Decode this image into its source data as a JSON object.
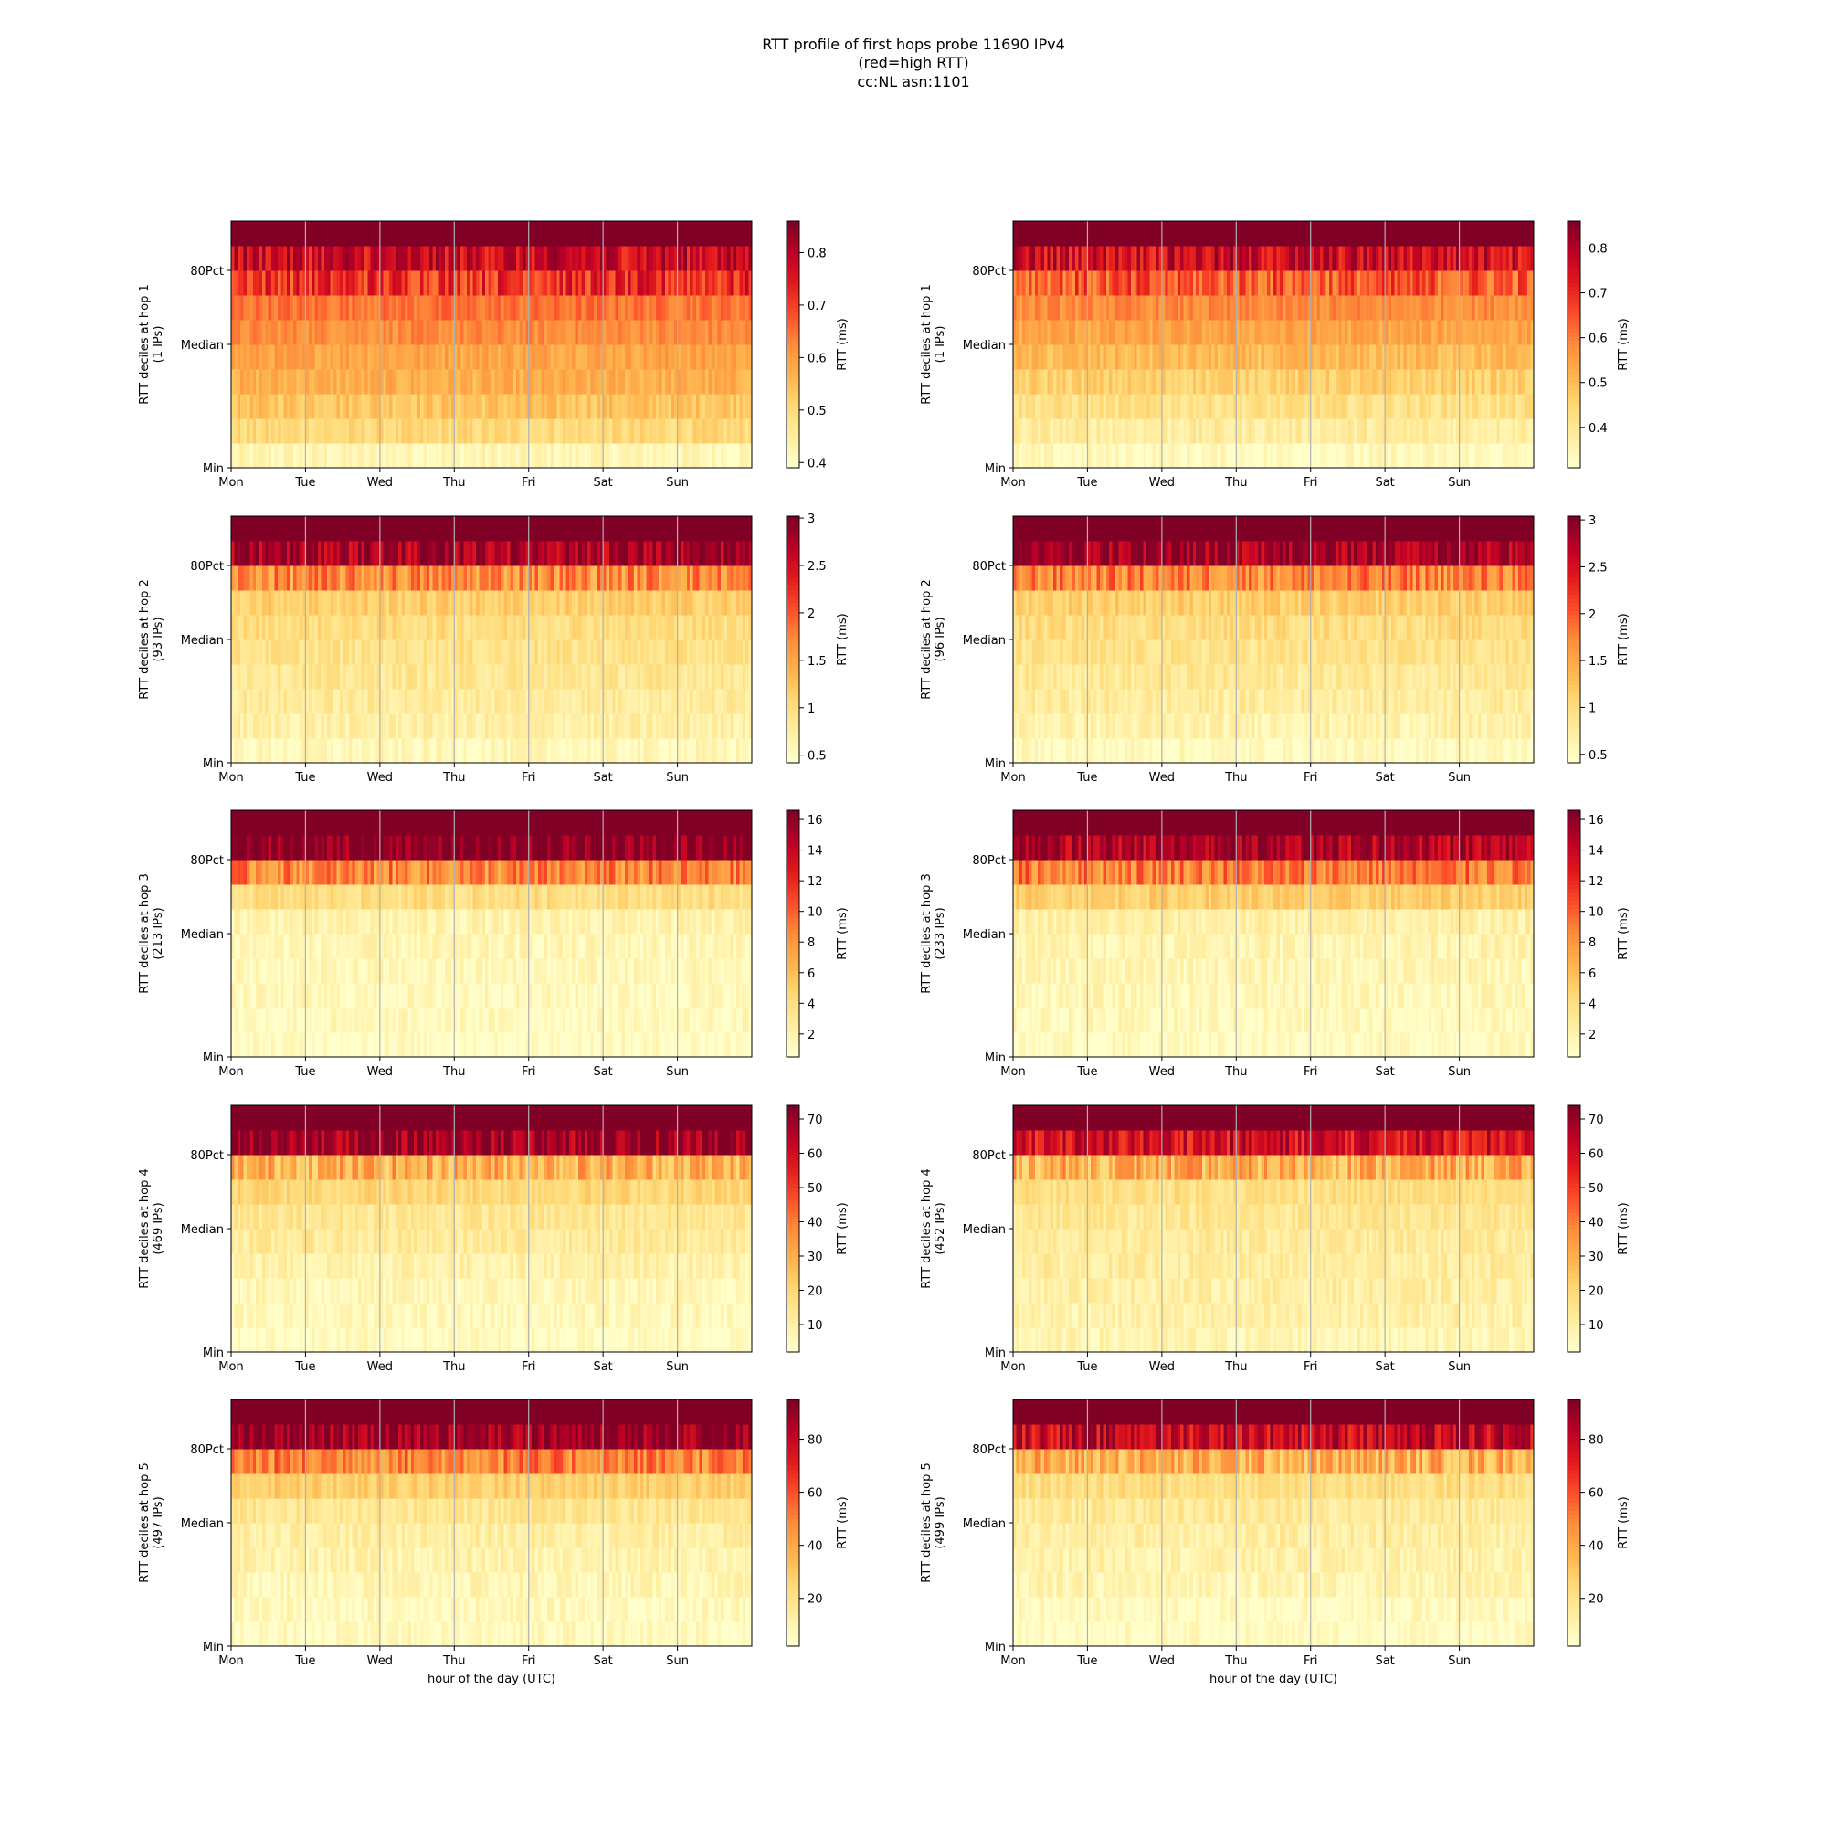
{
  "figure": {
    "title_lines": [
      "RTT profile of first hops probe 11690 IPv4",
      "(red=high RTT)",
      "cc:NL asn:1101"
    ]
  },
  "chart_data": [
    {
      "type": "heatmap",
      "hop": 1,
      "ips": 1,
      "ylabel": "RTT deciles at hop 1",
      "ylabel2": "(1 IPs)",
      "xlabel": "",
      "colorbar_label": "RTT (ms)",
      "colorbar_range": [
        0.39,
        0.86
      ],
      "colorbar_ticks": [
        0.4,
        0.5,
        0.6,
        0.7,
        0.8
      ],
      "decile_rtt_ms": [
        0.42,
        0.5,
        0.54,
        0.57,
        0.59,
        0.62,
        0.65,
        0.72,
        0.78,
        0.86
      ]
    },
    {
      "type": "heatmap",
      "hop": 1,
      "ips": 1,
      "ylabel": "RTT deciles at hop 1",
      "ylabel2": "(1 IPs)",
      "xlabel": "",
      "colorbar_label": "RTT (ms)",
      "colorbar_range": [
        0.31,
        0.86
      ],
      "colorbar_ticks": [
        0.4,
        0.5,
        0.6,
        0.7,
        0.8
      ],
      "decile_rtt_ms": [
        0.33,
        0.38,
        0.42,
        0.46,
        0.5,
        0.54,
        0.58,
        0.64,
        0.76,
        0.86
      ]
    },
    {
      "type": "heatmap",
      "hop": 2,
      "ips": 93,
      "ylabel": "RTT deciles at hop 2",
      "ylabel2": "(93 IPs)",
      "xlabel": "",
      "colorbar_label": "RTT (ms)",
      "colorbar_range": [
        0.42,
        3.02
      ],
      "colorbar_ticks": [
        0.5,
        1.0,
        1.5,
        2.0,
        2.5,
        3.0
      ],
      "decile_rtt_ms": [
        0.55,
        0.7,
        0.78,
        0.85,
        0.92,
        1.0,
        1.15,
        1.7,
        2.8,
        3.02
      ]
    },
    {
      "type": "heatmap",
      "hop": 2,
      "ips": 96,
      "ylabel": "RTT deciles at hop 2",
      "ylabel2": "(96 IPs)",
      "xlabel": "",
      "colorbar_label": "RTT (ms)",
      "colorbar_range": [
        0.41,
        3.04
      ],
      "colorbar_ticks": [
        0.5,
        1.0,
        1.5,
        2.0,
        2.5,
        3.0
      ],
      "decile_rtt_ms": [
        0.5,
        0.65,
        0.75,
        0.82,
        0.9,
        1.0,
        1.15,
        1.75,
        2.85,
        3.04
      ]
    },
    {
      "type": "heatmap",
      "hop": 3,
      "ips": 213,
      "ylabel": "RTT deciles at hop 3",
      "ylabel2": "(213 IPs)",
      "xlabel": "",
      "colorbar_label": "RTT (ms)",
      "colorbar_range": [
        0.5,
        16.6
      ],
      "colorbar_ticks": [
        2,
        4,
        6,
        8,
        10,
        12,
        14,
        16
      ],
      "decile_rtt_ms": [
        0.9,
        1.1,
        1.2,
        1.3,
        1.5,
        1.8,
        4.0,
        8.5,
        16.6,
        16.6
      ]
    },
    {
      "type": "heatmap",
      "hop": 3,
      "ips": 233,
      "ylabel": "RTT deciles at hop 3",
      "ylabel2": "(233 IPs)",
      "xlabel": "",
      "colorbar_label": "RTT (ms)",
      "colorbar_range": [
        0.5,
        16.6
      ],
      "colorbar_ticks": [
        2,
        4,
        6,
        8,
        10,
        12,
        14,
        16
      ],
      "decile_rtt_ms": [
        1.0,
        1.2,
        1.4,
        1.6,
        1.8,
        2.2,
        5.0,
        9.0,
        15.0,
        16.6
      ]
    },
    {
      "type": "heatmap",
      "hop": 4,
      "ips": 469,
      "ylabel": "RTT deciles at hop 4",
      "ylabel2": "(469 IPs)",
      "xlabel": "",
      "colorbar_label": "RTT (ms)",
      "colorbar_range": [
        2,
        74
      ],
      "colorbar_ticks": [
        10,
        20,
        30,
        40,
        50,
        60,
        70
      ],
      "decile_rtt_ms": [
        4,
        5,
        6,
        9,
        12,
        14,
        20,
        30,
        70,
        74
      ]
    },
    {
      "type": "heatmap",
      "hop": 4,
      "ips": 452,
      "ylabel": "RTT deciles at hop 4",
      "ylabel2": "(452 IPs)",
      "xlabel": "",
      "colorbar_label": "RTT (ms)",
      "colorbar_range": [
        2,
        74
      ],
      "colorbar_ticks": [
        10,
        20,
        30,
        40,
        50,
        60,
        70
      ],
      "decile_rtt_ms": [
        7,
        9,
        10,
        11,
        12,
        14,
        17,
        30,
        60,
        74
      ]
    },
    {
      "type": "heatmap",
      "hop": 5,
      "ips": 497,
      "ylabel": "RTT deciles at hop 5",
      "ylabel2": "(497 IPs)",
      "xlabel": "hour of the day (UTC)",
      "colorbar_label": "RTT (ms)",
      "colorbar_range": [
        2,
        95
      ],
      "colorbar_ticks": [
        20,
        40,
        60,
        80
      ],
      "decile_rtt_ms": [
        5,
        6,
        8,
        10,
        13,
        18,
        28,
        50,
        90,
        95
      ]
    },
    {
      "type": "heatmap",
      "hop": 5,
      "ips": 499,
      "ylabel": "RTT deciles at hop 5",
      "ylabel2": "(499 IPs)",
      "xlabel": "hour of the day (UTC)",
      "colorbar_label": "RTT (ms)",
      "colorbar_range": [
        2,
        95
      ],
      "colorbar_ticks": [
        20,
        40,
        60,
        80
      ],
      "decile_rtt_ms": [
        4,
        5,
        9,
        11,
        13,
        16,
        22,
        38,
        80,
        95
      ]
    }
  ],
  "axes": {
    "x_ticks": [
      "Mon",
      "Tue",
      "Wed",
      "Thu",
      "Fri",
      "Sat",
      "Sun"
    ],
    "y_ticks": [
      "Min",
      "Median",
      "80Pct"
    ],
    "grid": "vertical at day boundaries",
    "colormap": "YlOrRd"
  },
  "colors": {
    "colormap_stops": [
      "#ffffcc",
      "#ffeda0",
      "#fed976",
      "#feb24c",
      "#fd8d3c",
      "#fc4e2a",
      "#e31a1c",
      "#bd0026",
      "#800026"
    ],
    "grid": "#b0b0b0"
  }
}
